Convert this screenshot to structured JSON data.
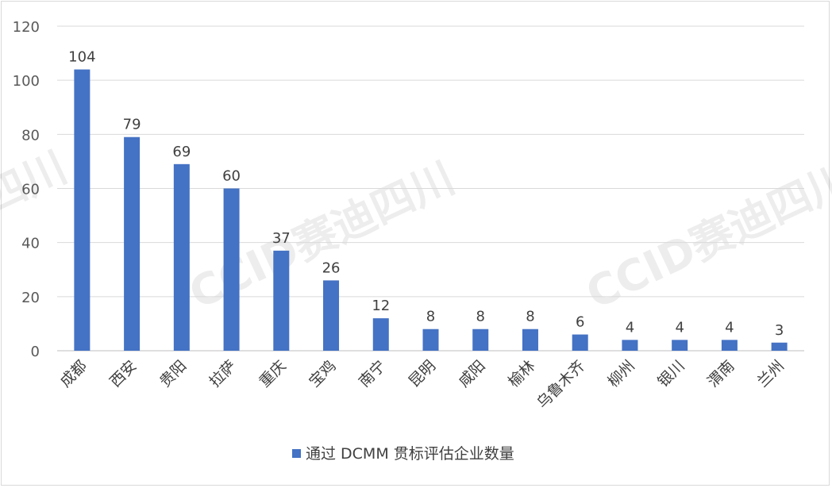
{
  "watermark": "CCID赛迪四川",
  "watermark_partial": "四川",
  "colors": {
    "bar": "#4472C4",
    "grid": "#d9d9d9",
    "axis": "#bfbfbf"
  },
  "chart_data": {
    "type": "bar",
    "categories": [
      "成都",
      "西安",
      "贵阳",
      "拉萨",
      "重庆",
      "宝鸡",
      "南宁",
      "昆明",
      "咸阳",
      "榆林",
      "乌鲁木齐",
      "柳州",
      "银川",
      "渭南",
      "兰州"
    ],
    "series": [
      {
        "name": "通过 DCMM 贯标评估企业数量",
        "values": [
          104,
          79,
          69,
          60,
          37,
          26,
          12,
          8,
          8,
          8,
          6,
          4,
          4,
          4,
          3
        ]
      }
    ],
    "ylim": [
      0,
      120
    ],
    "yticks": [
      0,
      20,
      40,
      60,
      80,
      100,
      120
    ],
    "grid": true,
    "legend": "bottom",
    "data_labels": true
  }
}
